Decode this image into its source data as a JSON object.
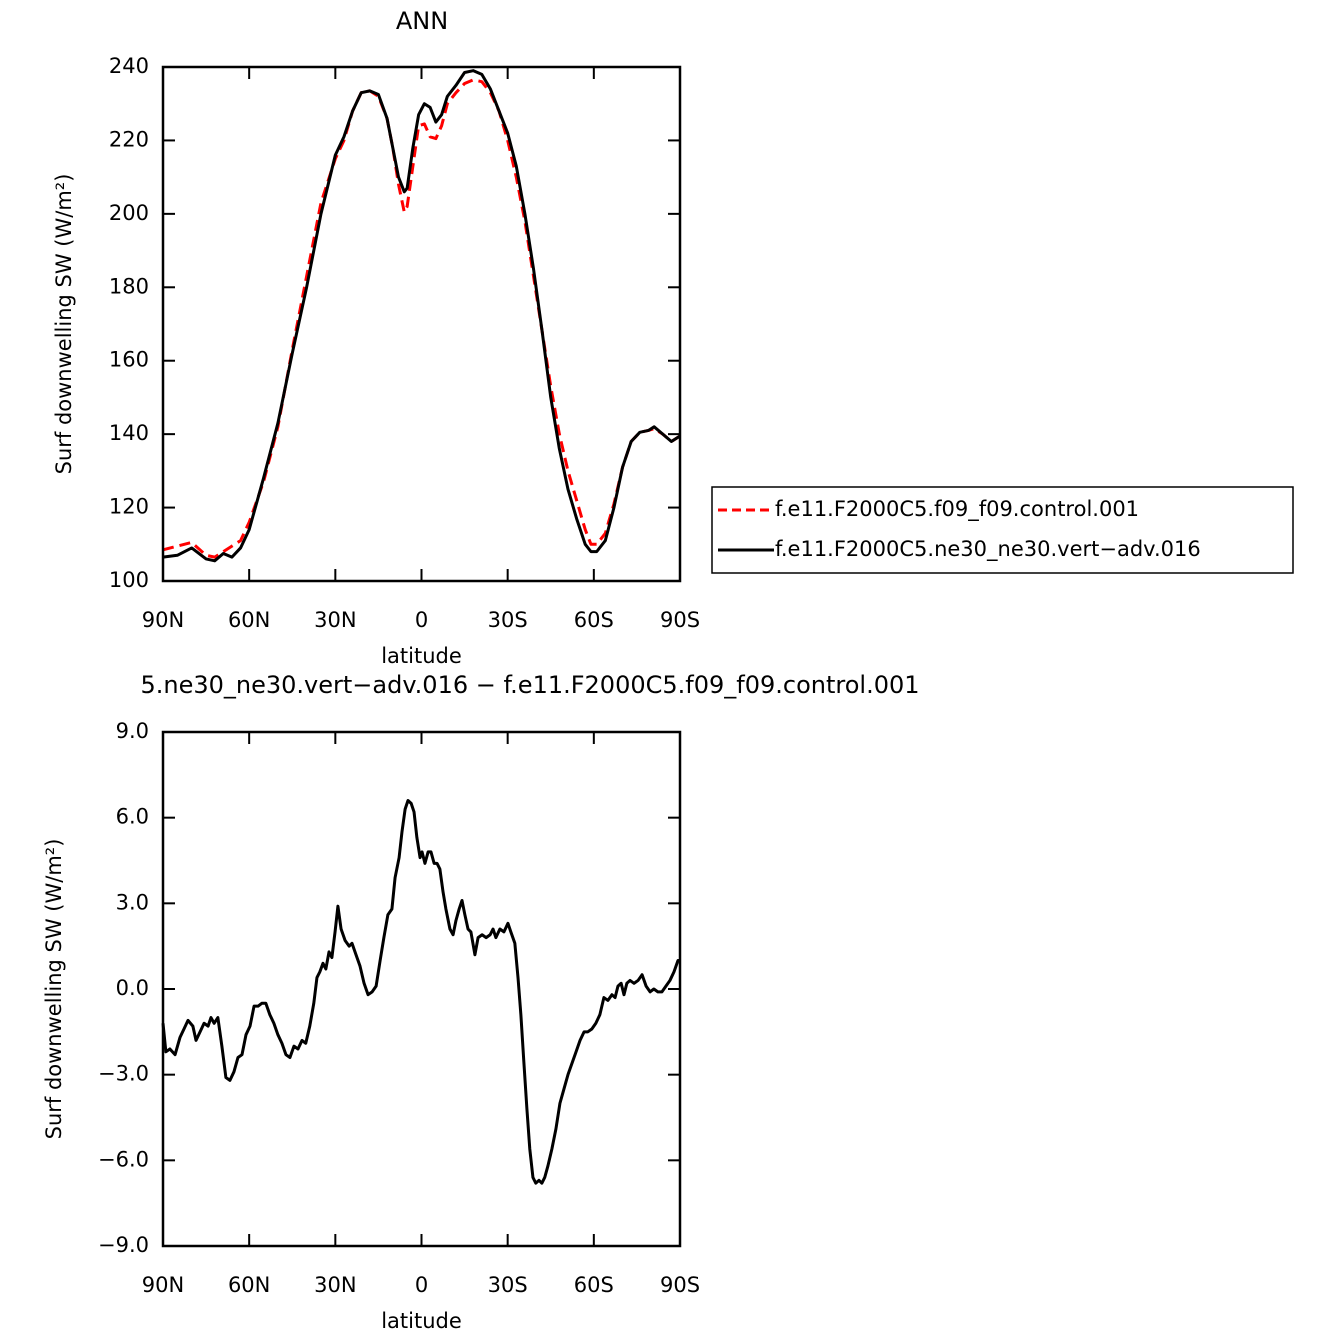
{
  "chart_data": [
    {
      "type": "line",
      "title": "ANN",
      "xlabel": "latitude",
      "ylabel": "Surf downwelling SW (W/m²)",
      "xlim": [
        90,
        -90
      ],
      "xticks": [
        {
          "value": 90,
          "label": "90N"
        },
        {
          "value": 60,
          "label": "60N"
        },
        {
          "value": 30,
          "label": "30N"
        },
        0,
        {
          "value": -30,
          "label": "30S"
        },
        {
          "value": -60,
          "label": "60S"
        },
        {
          "value": -90,
          "label": "90S"
        }
      ],
      "ylim": [
        100,
        240
      ],
      "yticks": [
        100,
        120,
        140,
        160,
        180,
        200,
        220,
        240
      ],
      "legend": "right",
      "x": [
        90,
        85,
        80,
        75,
        72,
        69,
        66,
        63,
        60,
        55,
        50,
        45,
        40,
        35,
        30,
        27,
        24,
        21,
        18,
        15,
        12,
        10,
        8,
        6,
        5,
        3,
        1,
        -1,
        -3,
        -5,
        -7,
        -9,
        -12,
        -15,
        -18,
        -21,
        -24,
        -27,
        -30,
        -33,
        -36,
        -39,
        -42,
        -45,
        -48,
        -51,
        -54,
        -57,
        -59,
        -61,
        -64,
        -67,
        -70,
        -73,
        -76,
        -79,
        -81,
        -84,
        -87,
        -90
      ],
      "series": [
        {
          "name": "f.e11.F2000C5.f09_f09.control.001",
          "color": "#ff0000",
          "dash": true,
          "values": [
            108.5,
            109.5,
            110.5,
            107,
            106.5,
            108,
            109.5,
            111,
            116,
            127,
            142,
            163,
            183,
            203,
            215,
            220,
            228,
            233,
            233.5,
            232,
            226,
            218,
            208,
            200.5,
            202,
            213,
            224,
            224.5,
            221,
            220.5,
            224,
            230,
            233,
            235.5,
            236.5,
            236,
            233,
            228,
            220,
            210,
            198,
            183,
            168,
            153,
            140,
            130,
            122,
            114,
            110,
            110,
            113,
            121,
            131,
            138,
            140.5,
            141,
            141.5,
            140,
            138,
            139.5
          ]
        },
        {
          "name": "f.e11.F2000C5.ne30_ne30.vert−adv.016",
          "color": "#000000",
          "dash": false,
          "values": [
            106.5,
            107,
            109,
            106,
            105.5,
            107.5,
            106.5,
            109,
            114,
            128,
            143,
            162,
            180,
            200,
            216,
            221,
            228,
            233,
            233.5,
            232.5,
            226,
            218,
            210,
            206,
            207,
            218,
            227,
            230,
            229,
            225,
            227,
            232,
            235,
            238.5,
            239,
            238,
            234,
            228,
            222,
            213,
            200,
            185,
            168,
            150,
            136,
            125,
            117,
            110,
            108,
            108,
            111,
            120,
            131,
            138,
            140.5,
            141,
            142,
            140,
            138,
            139.5
          ]
        }
      ]
    },
    {
      "type": "line",
      "title": "5.ne30_ne30.vert−adv.016 − f.e11.F2000C5.f09_f09.control.001",
      "xlabel": "latitude",
      "ylabel": "Surf downwelling SW (W/m²)",
      "xlim": [
        90,
        -90
      ],
      "xticks": [
        {
          "value": 90,
          "label": "90N"
        },
        {
          "value": 60,
          "label": "60N"
        },
        {
          "value": 30,
          "label": "30N"
        },
        0,
        {
          "value": -30,
          "label": "30S"
        },
        {
          "value": -60,
          "label": "60S"
        },
        {
          "value": -90,
          "label": "90S"
        }
      ],
      "ylim": [
        -9,
        9
      ],
      "yticks": [
        {
          "value": -9,
          "label": "−9.0"
        },
        {
          "value": -6,
          "label": "−6.0"
        },
        {
          "value": -3,
          "label": "−3.0"
        },
        {
          "value": 0,
          "label": "0.0"
        },
        {
          "value": 3,
          "label": "3.0"
        },
        {
          "value": 6,
          "label": "6.0"
        },
        {
          "value": 9,
          "label": "9.0"
        }
      ],
      "color": "#000000",
      "x": [
        90,
        89.0,
        87.6,
        85.8,
        84.1,
        82.7,
        81.3,
        79.6,
        78.5,
        77.1,
        75.7,
        74.3,
        73.3,
        72.2,
        70.9,
        69.5,
        68.1,
        66.7,
        65.3,
        63.9,
        62.5,
        61.1,
        59.7,
        58.3,
        56.9,
        55.6,
        54.2,
        52.8,
        51.4,
        50.0,
        48.6,
        47.2,
        45.8,
        44.4,
        43.0,
        41.6,
        40.3,
        38.9,
        37.5,
        36.4,
        35.4,
        34.3,
        33.3,
        32.2,
        31.2,
        30.1,
        29.1,
        28.0,
        26.6,
        25.2,
        24.2,
        22.8,
        21.4,
        20.0,
        18.6,
        17.2,
        15.8,
        14.4,
        13.1,
        11.7,
        10.3,
        9.2,
        7.8,
        6.8,
        5.7,
        4.7,
        3.6,
        2.6,
        1.6,
        0.5,
        -0.2,
        -1.2,
        -2.3,
        -3.3,
        -4.4,
        -5.4,
        -6.4,
        -7.5,
        -8.5,
        -9.9,
        -11.0,
        -12.0,
        -13.1,
        -14.1,
        -15.1,
        -16.2,
        -17.2,
        -18.6,
        -19.7,
        -21.1,
        -22.5,
        -23.9,
        -24.9,
        -25.9,
        -27.3,
        -28.7,
        -30.1,
        -31.1,
        -32.5,
        -33.6,
        -34.6,
        -35.6,
        -36.7,
        -37.7,
        -38.8,
        -39.8,
        -40.9,
        -41.9,
        -42.9,
        -44.0,
        -45.4,
        -46.8,
        -48.2,
        -49.6,
        -51.0,
        -52.4,
        -53.8,
        -55.2,
        -56.6,
        -57.9,
        -59.3,
        -60.7,
        -62.1,
        -63.5,
        -64.9,
        -66.3,
        -67.4,
        -68.4,
        -69.5,
        -70.5,
        -71.5,
        -72.6,
        -74.0,
        -75.4,
        -76.8,
        -78.2,
        -79.6,
        -80.9,
        -82.3,
        -83.7,
        -85.1,
        -86.5,
        -87.9,
        -89.3,
        -90
      ],
      "values": [
        -1.2,
        -2.2,
        -2.1,
        -2.3,
        -1.7,
        -1.4,
        -1.1,
        -1.3,
        -1.8,
        -1.5,
        -1.2,
        -1.3,
        -1.0,
        -1.2,
        -1.0,
        -2.0,
        -3.1,
        -3.2,
        -2.9,
        -2.4,
        -2.3,
        -1.6,
        -1.3,
        -0.6,
        -0.6,
        -0.5,
        -0.5,
        -0.9,
        -1.2,
        -1.6,
        -1.9,
        -2.3,
        -2.4,
        -2.0,
        -2.1,
        -1.8,
        -1.9,
        -1.3,
        -0.5,
        0.4,
        0.6,
        0.9,
        0.7,
        1.3,
        1.1,
        2.0,
        2.9,
        2.1,
        1.7,
        1.5,
        1.6,
        1.2,
        0.8,
        0.2,
        -0.2,
        -0.1,
        0.1,
        1.0,
        1.8,
        2.6,
        2.8,
        3.9,
        4.6,
        5.5,
        6.3,
        6.6,
        6.5,
        6.2,
        5.3,
        4.6,
        4.8,
        4.4,
        4.8,
        4.8,
        4.4,
        4.4,
        4.2,
        3.4,
        2.8,
        2.1,
        1.9,
        2.4,
        2.8,
        3.1,
        2.6,
        2.1,
        2.0,
        1.2,
        1.8,
        1.9,
        1.8,
        1.9,
        2.1,
        1.8,
        2.1,
        2.0,
        2.3,
        2.0,
        1.6,
        0.4,
        -0.9,
        -2.5,
        -4.2,
        -5.6,
        -6.6,
        -6.8,
        -6.7,
        -6.8,
        -6.6,
        -6.2,
        -5.6,
        -4.9,
        -4.0,
        -3.5,
        -3.0,
        -2.6,
        -2.2,
        -1.8,
        -1.5,
        -1.5,
        -1.4,
        -1.2,
        -0.9,
        -0.3,
        -0.4,
        -0.2,
        -0.3,
        0.1,
        0.2,
        -0.2,
        0.2,
        0.3,
        0.2,
        0.3,
        0.5,
        0.1,
        -0.1,
        0.0,
        -0.1,
        -0.1,
        0.1,
        0.3,
        0.6,
        1.0,
        1.0
      ]
    }
  ]
}
